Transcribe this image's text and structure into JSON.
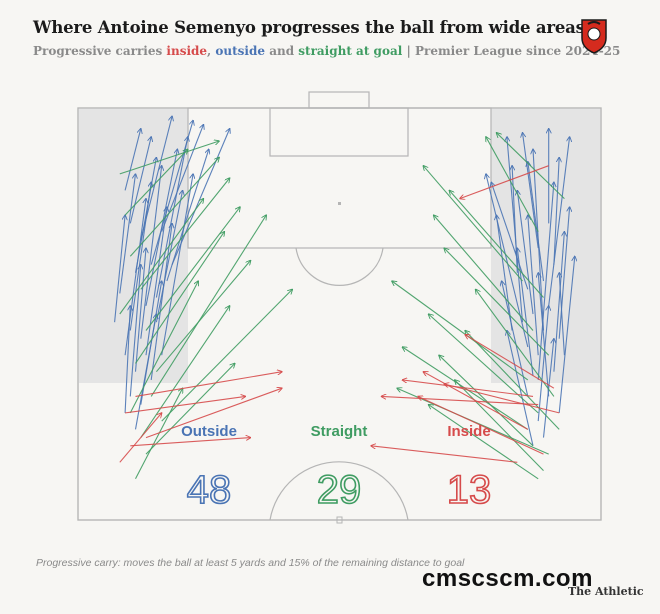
{
  "header": {
    "title": "Where Antoine Semenyo progresses the ball from wide areas",
    "subtitle_prefix": "Progressive carries ",
    "subtitle_inside": "inside",
    "subtitle_sep1": ", ",
    "subtitle_outside": "outside",
    "subtitle_sep2": " and ",
    "subtitle_straight": "straight at goal",
    "subtitle_suffix": " | Premier League since 2024-25"
  },
  "colors": {
    "outside": "#4a74b4",
    "straight": "#3f9c62",
    "inside": "#d64b4b",
    "pitch_line": "#b5b5b5",
    "wide_zone": "#e4e4e4"
  },
  "chart_data": {
    "type": "arrow-map",
    "categories": [
      {
        "key": "outside",
        "label": "Outside",
        "count": "48"
      },
      {
        "key": "straight",
        "label": "Straight",
        "count": "29"
      },
      {
        "key": "inside",
        "label": "Inside",
        "count": "13"
      }
    ],
    "carries": {
      "outside": [
        [
          0.09,
          0.8,
          0.12,
          0.95
        ],
        [
          0.1,
          0.72,
          0.14,
          0.93
        ],
        [
          0.11,
          0.6,
          0.15,
          0.88
        ],
        [
          0.08,
          0.55,
          0.11,
          0.84
        ],
        [
          0.12,
          0.68,
          0.18,
          0.98
        ],
        [
          0.13,
          0.52,
          0.19,
          0.9
        ],
        [
          0.1,
          0.46,
          0.14,
          0.82
        ],
        [
          0.14,
          0.62,
          0.22,
          0.97
        ],
        [
          0.09,
          0.4,
          0.13,
          0.78
        ],
        [
          0.12,
          0.44,
          0.16,
          0.86
        ],
        [
          0.15,
          0.54,
          0.21,
          0.93
        ],
        [
          0.07,
          0.48,
          0.09,
          0.74
        ],
        [
          0.16,
          0.7,
          0.24,
          0.96
        ],
        [
          0.11,
          0.36,
          0.13,
          0.66
        ],
        [
          0.13,
          0.4,
          0.17,
          0.76
        ],
        [
          0.1,
          0.3,
          0.12,
          0.62
        ],
        [
          0.17,
          0.58,
          0.25,
          0.9
        ],
        [
          0.14,
          0.34,
          0.18,
          0.72
        ],
        [
          0.12,
          0.28,
          0.16,
          0.58
        ],
        [
          0.18,
          0.62,
          0.29,
          0.95
        ],
        [
          0.09,
          0.26,
          0.1,
          0.52
        ],
        [
          0.15,
          0.48,
          0.2,
          0.8
        ],
        [
          0.11,
          0.22,
          0.15,
          0.5
        ],
        [
          0.16,
          0.4,
          0.22,
          0.84
        ],
        [
          0.88,
          0.66,
          0.85,
          0.94
        ],
        [
          0.89,
          0.58,
          0.86,
          0.87
        ],
        [
          0.87,
          0.5,
          0.84,
          0.8
        ],
        [
          0.9,
          0.72,
          0.9,
          0.95
        ],
        [
          0.88,
          0.4,
          0.86,
          0.74
        ],
        [
          0.86,
          0.56,
          0.79,
          0.82
        ],
        [
          0.91,
          0.62,
          0.92,
          0.88
        ],
        [
          0.87,
          0.35,
          0.84,
          0.66
        ],
        [
          0.89,
          0.46,
          0.87,
          0.9
        ],
        [
          0.92,
          0.44,
          0.94,
          0.76
        ],
        [
          0.85,
          0.48,
          0.82,
          0.93
        ],
        [
          0.9,
          0.3,
          0.88,
          0.6
        ],
        [
          0.88,
          0.24,
          0.9,
          0.52
        ],
        [
          0.86,
          0.3,
          0.81,
          0.58
        ],
        [
          0.91,
          0.36,
          0.93,
          0.7
        ],
        [
          0.84,
          0.6,
          0.83,
          0.86
        ],
        [
          0.89,
          0.2,
          0.91,
          0.44
        ],
        [
          0.87,
          0.18,
          0.82,
          0.46
        ],
        [
          0.92,
          0.26,
          0.95,
          0.64
        ],
        [
          0.86,
          0.42,
          0.78,
          0.84
        ],
        [
          0.9,
          0.52,
          0.94,
          0.93
        ],
        [
          0.83,
          0.46,
          0.8,
          0.74
        ],
        [
          0.88,
          0.34,
          0.91,
          0.82
        ],
        [
          0.93,
          0.4,
          0.92,
          0.6
        ]
      ],
      "straight": [
        [
          0.09,
          0.74,
          0.21,
          0.9
        ],
        [
          0.1,
          0.64,
          0.27,
          0.88
        ],
        [
          0.12,
          0.56,
          0.29,
          0.83
        ],
        [
          0.08,
          0.5,
          0.24,
          0.78
        ],
        [
          0.13,
          0.46,
          0.31,
          0.76
        ],
        [
          0.11,
          0.38,
          0.28,
          0.7
        ],
        [
          0.14,
          0.3,
          0.36,
          0.74
        ],
        [
          0.1,
          0.26,
          0.23,
          0.58
        ],
        [
          0.15,
          0.36,
          0.33,
          0.63
        ],
        [
          0.12,
          0.2,
          0.29,
          0.52
        ],
        [
          0.16,
          0.24,
          0.41,
          0.56
        ],
        [
          0.08,
          0.84,
          0.27,
          0.92
        ],
        [
          0.13,
          0.16,
          0.3,
          0.38
        ],
        [
          0.11,
          0.1,
          0.2,
          0.32
        ],
        [
          0.88,
          0.7,
          0.78,
          0.93
        ],
        [
          0.89,
          0.54,
          0.71,
          0.8
        ],
        [
          0.87,
          0.46,
          0.68,
          0.74
        ],
        [
          0.9,
          0.4,
          0.7,
          0.66
        ],
        [
          0.86,
          0.34,
          0.6,
          0.58
        ],
        [
          0.91,
          0.3,
          0.76,
          0.56
        ],
        [
          0.88,
          0.26,
          0.67,
          0.5
        ],
        [
          0.92,
          0.22,
          0.74,
          0.46
        ],
        [
          0.87,
          0.18,
          0.69,
          0.4
        ],
        [
          0.89,
          0.12,
          0.72,
          0.34
        ],
        [
          0.85,
          0.58,
          0.66,
          0.86
        ],
        [
          0.93,
          0.78,
          0.8,
          0.94
        ],
        [
          0.9,
          0.16,
          0.61,
          0.32
        ],
        [
          0.86,
          0.22,
          0.62,
          0.42
        ],
        [
          0.88,
          0.1,
          0.67,
          0.28
        ]
      ],
      "inside": [
        [
          0.09,
          0.26,
          0.32,
          0.3
        ],
        [
          0.11,
          0.3,
          0.39,
          0.36
        ],
        [
          0.13,
          0.2,
          0.39,
          0.32
        ],
        [
          0.1,
          0.18,
          0.33,
          0.2
        ],
        [
          0.08,
          0.14,
          0.16,
          0.26
        ],
        [
          0.9,
          0.86,
          0.73,
          0.78
        ],
        [
          0.87,
          0.3,
          0.62,
          0.34
        ],
        [
          0.91,
          0.32,
          0.74,
          0.45
        ],
        [
          0.88,
          0.28,
          0.58,
          0.3
        ],
        [
          0.89,
          0.16,
          0.65,
          0.3
        ],
        [
          0.86,
          0.22,
          0.66,
          0.36
        ],
        [
          0.92,
          0.26,
          0.7,
          0.33
        ],
        [
          0.84,
          0.14,
          0.56,
          0.18
        ]
      ]
    }
  },
  "footer": {
    "footnote": "Progressive carry: moves the ball at least 5 yards and 15% of the remaining distance to goal",
    "watermark": "cmscscm.com",
    "brand": "The Athletic"
  }
}
